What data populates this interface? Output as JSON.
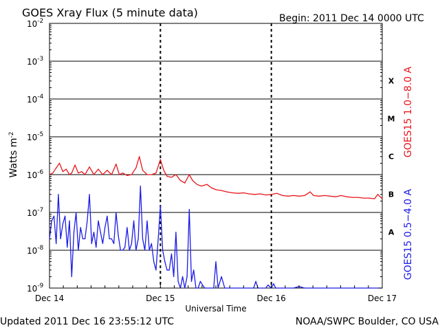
{
  "header": {
    "title": "GOES Xray Flux (5 minute data)",
    "begin": "Begin:  2011 Dec 14 0000 UTC"
  },
  "footer": {
    "updated": "Updated 2011 Dec 16 23:55:12 UTC",
    "source": "NOAA/SWPC Boulder, CO USA"
  },
  "chart_data": {
    "type": "line",
    "title": "GOES Xray Flux (5 minute data)",
    "xlabel": "Universal Time",
    "ylabel_base": "Watts m",
    "ylabel_exp": "-2",
    "yscale": "log",
    "ylim": [
      1e-09,
      0.01
    ],
    "xlim": [
      0,
      3
    ],
    "x_unit": "days since 2011 Dec 14 0000 UTC",
    "x_ticks": [
      {
        "value": 0,
        "label": "Dec 14"
      },
      {
        "value": 1,
        "label": "Dec 15"
      },
      {
        "value": 2,
        "label": "Dec 16"
      },
      {
        "value": 3,
        "label": "Dec 17"
      }
    ],
    "y_ticks": [
      {
        "exp": -9,
        "label": "-9"
      },
      {
        "exp": -8,
        "label": "-8"
      },
      {
        "exp": -7,
        "label": "-7"
      },
      {
        "exp": -6,
        "label": "-6"
      },
      {
        "exp": -5,
        "label": "-5"
      },
      {
        "exp": -4,
        "label": "-4"
      },
      {
        "exp": -3,
        "label": "-3"
      },
      {
        "exp": -2,
        "label": "-2"
      }
    ],
    "flare_classes": [
      {
        "label": "A",
        "exp": -8
      },
      {
        "label": "B",
        "exp": -7
      },
      {
        "label": "C",
        "exp": -6
      },
      {
        "label": "M",
        "exp": -5
      },
      {
        "label": "X",
        "exp": -4
      }
    ],
    "grid": true,
    "legend_position": "right",
    "series": [
      {
        "name": "GOES15 1.0−8.0 A",
        "color": "#e8141a",
        "points": [
          [
            0.0,
            1e-06
          ],
          [
            0.03,
            1.1e-06
          ],
          [
            0.06,
            1.5e-06
          ],
          [
            0.09,
            2e-06
          ],
          [
            0.12,
            1.2e-06
          ],
          [
            0.15,
            1.4e-06
          ],
          [
            0.18,
            1e-06
          ],
          [
            0.2,
            1.1e-06
          ],
          [
            0.23,
            1.8e-06
          ],
          [
            0.26,
            1.1e-06
          ],
          [
            0.29,
            1.2e-06
          ],
          [
            0.32,
            1e-06
          ],
          [
            0.36,
            1.6e-06
          ],
          [
            0.4,
            1e-06
          ],
          [
            0.44,
            1.4e-06
          ],
          [
            0.48,
            1e-06
          ],
          [
            0.52,
            1.3e-06
          ],
          [
            0.56,
            1e-06
          ],
          [
            0.6,
            1.9e-06
          ],
          [
            0.63,
            1e-06
          ],
          [
            0.66,
            1.1e-06
          ],
          [
            0.7,
            9.5e-07
          ],
          [
            0.74,
            1e-06
          ],
          [
            0.78,
            1.5e-06
          ],
          [
            0.81,
            3e-06
          ],
          [
            0.84,
            1.3e-06
          ],
          [
            0.88,
            1e-06
          ],
          [
            0.92,
            1e-06
          ],
          [
            0.96,
            1.1e-06
          ],
          [
            1.0,
            2.5e-06
          ],
          [
            1.03,
            1.3e-06
          ],
          [
            1.06,
            9e-07
          ],
          [
            1.1,
            8.5e-07
          ],
          [
            1.14,
            1e-06
          ],
          [
            1.18,
            7e-07
          ],
          [
            1.22,
            6e-07
          ],
          [
            1.26,
            1e-06
          ],
          [
            1.29,
            7e-07
          ],
          [
            1.33,
            5.5e-07
          ],
          [
            1.37,
            5e-07
          ],
          [
            1.42,
            5.5e-07
          ],
          [
            1.46,
            4.5e-07
          ],
          [
            1.5,
            4e-07
          ],
          [
            1.55,
            3.8e-07
          ],
          [
            1.6,
            3.5e-07
          ],
          [
            1.65,
            3.3e-07
          ],
          [
            1.7,
            3.2e-07
          ],
          [
            1.75,
            3.3e-07
          ],
          [
            1.8,
            3.1e-07
          ],
          [
            1.85,
            3e-07
          ],
          [
            1.9,
            3.1e-07
          ],
          [
            1.95,
            2.9e-07
          ],
          [
            2.0,
            3e-07
          ],
          [
            2.05,
            3.2e-07
          ],
          [
            2.1,
            2.8e-07
          ],
          [
            2.15,
            2.7e-07
          ],
          [
            2.2,
            2.8e-07
          ],
          [
            2.25,
            2.7e-07
          ],
          [
            2.3,
            2.8e-07
          ],
          [
            2.35,
            3.5e-07
          ],
          [
            2.38,
            2.8e-07
          ],
          [
            2.43,
            2.7e-07
          ],
          [
            2.48,
            2.8e-07
          ],
          [
            2.53,
            2.7e-07
          ],
          [
            2.58,
            2.6e-07
          ],
          [
            2.63,
            2.8e-07
          ],
          [
            2.68,
            2.6e-07
          ],
          [
            2.73,
            2.5e-07
          ],
          [
            2.78,
            2.5e-07
          ],
          [
            2.83,
            2.4e-07
          ],
          [
            2.88,
            2.4e-07
          ],
          [
            2.93,
            2.3e-07
          ],
          [
            2.96,
            3e-07
          ],
          [
            3.0,
            2.3e-07
          ]
        ]
      },
      {
        "name": "GOES15 0.5−4.0 A",
        "color": "#1a1ae6",
        "points": [
          [
            0.0,
            2e-08
          ],
          [
            0.02,
            6e-08
          ],
          [
            0.04,
            8e-08
          ],
          [
            0.06,
            1.5e-08
          ],
          [
            0.08,
            3e-07
          ],
          [
            0.1,
            2e-08
          ],
          [
            0.12,
            5e-08
          ],
          [
            0.14,
            8e-08
          ],
          [
            0.16,
            1.2e-08
          ],
          [
            0.18,
            6e-08
          ],
          [
            0.2,
            2e-09
          ],
          [
            0.22,
            3e-08
          ],
          [
            0.24,
            1e-07
          ],
          [
            0.26,
            1e-08
          ],
          [
            0.28,
            4e-08
          ],
          [
            0.3,
            2e-08
          ],
          [
            0.32,
            2e-08
          ],
          [
            0.34,
            6e-08
          ],
          [
            0.36,
            3e-07
          ],
          [
            0.38,
            1.5e-08
          ],
          [
            0.4,
            3e-08
          ],
          [
            0.42,
            1.2e-08
          ],
          [
            0.44,
            6e-08
          ],
          [
            0.46,
            3e-08
          ],
          [
            0.48,
            1.5e-08
          ],
          [
            0.5,
            4e-08
          ],
          [
            0.52,
            8e-08
          ],
          [
            0.54,
            2e-08
          ],
          [
            0.56,
            2e-08
          ],
          [
            0.58,
            1.5e-08
          ],
          [
            0.6,
            1e-07
          ],
          [
            0.62,
            2.5e-08
          ],
          [
            0.64,
            1e-08
          ],
          [
            0.66,
            1e-08
          ],
          [
            0.68,
            1.2e-08
          ],
          [
            0.7,
            4e-08
          ],
          [
            0.72,
            1e-08
          ],
          [
            0.74,
            1.5e-08
          ],
          [
            0.76,
            6e-08
          ],
          [
            0.78,
            1e-08
          ],
          [
            0.8,
            2e-08
          ],
          [
            0.82,
            5e-07
          ],
          [
            0.84,
            2e-08
          ],
          [
            0.86,
            1e-08
          ],
          [
            0.88,
            6e-08
          ],
          [
            0.9,
            1e-08
          ],
          [
            0.92,
            1.5e-08
          ],
          [
            0.94,
            5e-09
          ],
          [
            0.96,
            3e-09
          ],
          [
            0.98,
            2e-08
          ],
          [
            1.0,
            1.5e-07
          ],
          [
            1.02,
            1e-08
          ],
          [
            1.04,
            5e-09
          ],
          [
            1.06,
            3e-09
          ],
          [
            1.08,
            3e-09
          ],
          [
            1.1,
            8e-09
          ],
          [
            1.12,
            2e-09
          ],
          [
            1.14,
            3e-08
          ],
          [
            1.16,
            1.5e-09
          ],
          [
            1.18,
            1e-09
          ],
          [
            1.2,
            2e-09
          ],
          [
            1.22,
            1e-09
          ],
          [
            1.24,
            2e-09
          ],
          [
            1.26,
            1.2e-07
          ],
          [
            1.28,
            1.5e-09
          ],
          [
            1.3,
            3e-09
          ],
          [
            1.32,
            1e-09
          ],
          [
            1.34,
            1e-09
          ],
          [
            1.36,
            1.5e-09
          ],
          [
            1.38,
            1.2e-09
          ],
          [
            1.4,
            1e-09
          ],
          [
            1.42,
            1e-09
          ],
          [
            1.45,
            1e-09
          ],
          [
            1.48,
            1e-09
          ],
          [
            1.5,
            5e-09
          ],
          [
            1.52,
            1e-09
          ],
          [
            1.55,
            2e-09
          ],
          [
            1.58,
            1e-09
          ],
          [
            1.62,
            1e-09
          ],
          [
            1.66,
            1e-09
          ],
          [
            1.7,
            1e-09
          ],
          [
            1.74,
            1e-09
          ],
          [
            1.8,
            1e-09
          ],
          [
            1.84,
            1e-09
          ],
          [
            1.86,
            1.5e-09
          ],
          [
            1.88,
            1e-09
          ],
          [
            1.92,
            1e-09
          ],
          [
            1.95,
            1e-09
          ],
          [
            1.97,
            1.2e-09
          ],
          [
            2.0,
            1e-09
          ],
          [
            2.02,
            1.3e-09
          ],
          [
            2.04,
            1e-09
          ],
          [
            2.1,
            1e-09
          ],
          [
            2.2,
            1e-09
          ],
          [
            2.25,
            1.1e-09
          ],
          [
            2.3,
            1e-09
          ],
          [
            2.35,
            1e-09
          ],
          [
            2.4,
            1e-09
          ],
          [
            2.45,
            1e-09
          ],
          [
            2.5,
            1e-09
          ],
          [
            2.6,
            1e-09
          ],
          [
            2.7,
            1e-09
          ],
          [
            2.8,
            1e-09
          ],
          [
            2.9,
            1e-09
          ],
          [
            3.0,
            1e-09
          ]
        ]
      }
    ]
  }
}
